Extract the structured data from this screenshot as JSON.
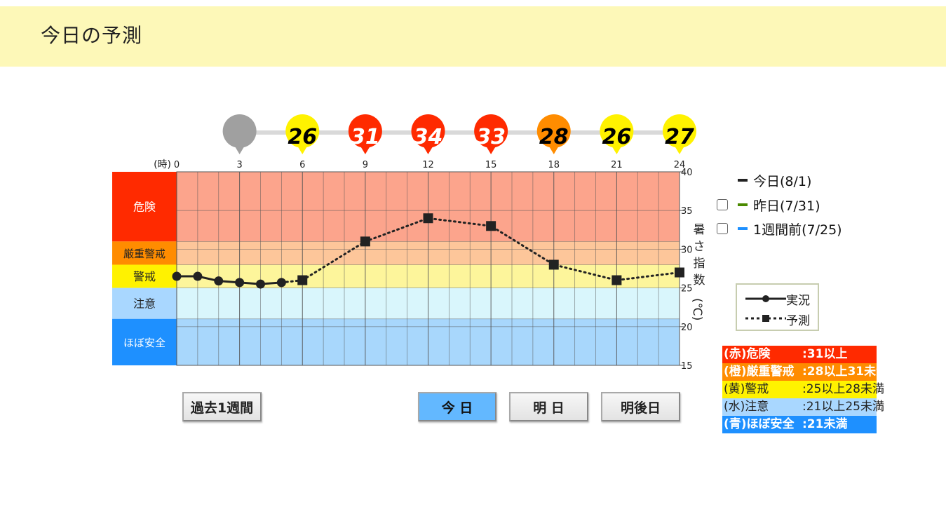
{
  "header": {
    "title": "今日の予測"
  },
  "chart_data": {
    "type": "line",
    "x_axis": {
      "label": "(時)",
      "min": 0,
      "max": 24,
      "ticks": [
        0,
        3,
        6,
        9,
        12,
        15,
        18,
        21,
        24
      ]
    },
    "y_axis": {
      "label": "暑さ指数(℃)",
      "min": 15,
      "max": 40,
      "ticks": [
        15,
        20,
        25,
        30,
        35,
        40
      ]
    },
    "levels": [
      {
        "name": "危険",
        "from": 31,
        "to": 40,
        "side_color": "#ff2a00",
        "bg_color": "#fca48c",
        "text_color": "#ffffff"
      },
      {
        "name": "厳重警戒",
        "from": 28,
        "to": 31,
        "side_color": "#ff8c00",
        "bg_color": "#fdc69a",
        "text_color": "#222222"
      },
      {
        "name": "警戒",
        "from": 25,
        "to": 28,
        "side_color": "#fff200",
        "bg_color": "#fdf59b",
        "text_color": "#222222"
      },
      {
        "name": "注意",
        "from": 21,
        "to": 25,
        "side_color": "#a9d7ff",
        "bg_color": "#d9f6fc",
        "text_color": "#222222"
      },
      {
        "name": "ほぼ安全",
        "from": 15,
        "to": 21,
        "side_color": "#1e90ff",
        "bg_color": "#a8d7fc",
        "text_color": "#ffffff"
      }
    ],
    "series": [
      {
        "name": "実況",
        "style": "solid",
        "x": [
          0,
          1,
          2,
          3,
          4,
          5
        ],
        "y": [
          26.5,
          26.5,
          25.9,
          25.7,
          25.5,
          25.7
        ]
      },
      {
        "name": "予測",
        "style": "dotted",
        "x": [
          6,
          9,
          12,
          15,
          18,
          21,
          24
        ],
        "y": [
          26,
          31,
          34,
          33,
          28,
          26,
          27
        ]
      }
    ],
    "markers": [
      {
        "hour": 3,
        "value": "",
        "color": "#a0a0a0",
        "text_color": "#000000"
      },
      {
        "hour": 6,
        "value": "26",
        "color": "#fff200",
        "text_color": "#000000"
      },
      {
        "hour": 9,
        "value": "31",
        "color": "#ff2a00",
        "text_color": "#ffffff"
      },
      {
        "hour": 12,
        "value": "34",
        "color": "#ff2a00",
        "text_color": "#ffffff"
      },
      {
        "hour": 15,
        "value": "33",
        "color": "#ff2a00",
        "text_color": "#ffffff"
      },
      {
        "hour": 18,
        "value": "28",
        "color": "#ff8c00",
        "text_color": "#000000"
      },
      {
        "hour": 21,
        "value": "26",
        "color": "#fff200",
        "text_color": "#000000"
      },
      {
        "hour": 24,
        "value": "27",
        "color": "#fff200",
        "text_color": "#000000"
      }
    ]
  },
  "buttons": {
    "past_week": "過去1週間",
    "today": "今 日",
    "tomorrow": "明 日",
    "day_after": "明後日"
  },
  "legend": {
    "today": {
      "label": "今日(8/1)",
      "color": "#222222"
    },
    "yesterday": {
      "label": "昨日(7/31)",
      "color": "#4a8a00",
      "checked": false
    },
    "week_ago": {
      "label": "1週間前(7/25)",
      "color": "#1e90ff",
      "checked": false
    }
  },
  "line_legend": {
    "actual": "実況",
    "forecast": "予測"
  },
  "level_table": [
    {
      "name": "(赤)危険",
      "range": ":31以上",
      "color": "#ff2a00"
    },
    {
      "name": "(橙)厳重警戒",
      "range": ":28以上31未満",
      "color": "#ff8c00"
    },
    {
      "name": "(黄)警戒",
      "range": ":25以上28未満",
      "color": "#fff200"
    },
    {
      "name": "(水)注意",
      "range": ":21以上25未満",
      "color": "#a9d7ff"
    },
    {
      "name": "(青)ほぼ安全",
      "range": ":21未満",
      "color": "#1e90ff"
    }
  ]
}
